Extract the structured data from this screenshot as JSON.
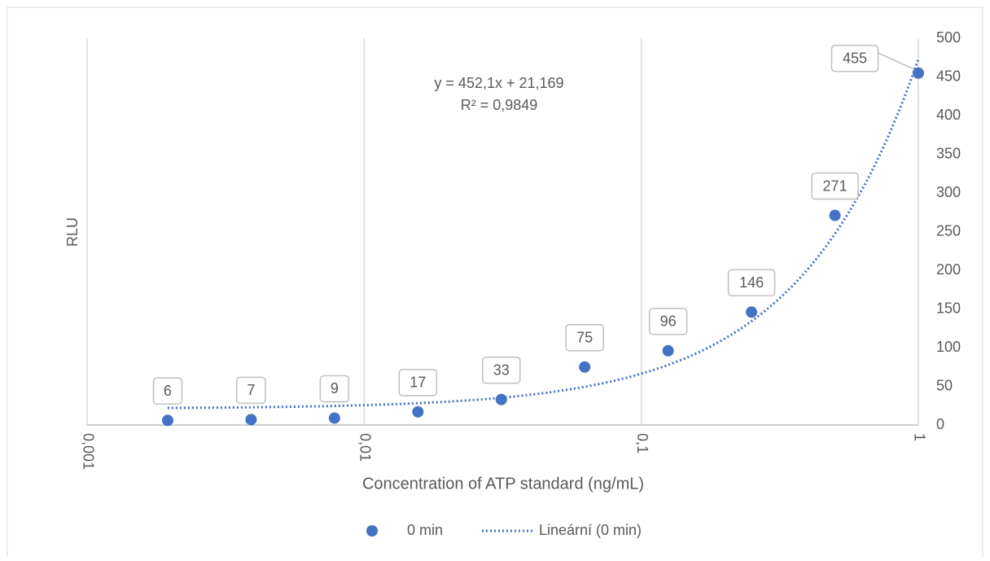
{
  "chart_data": {
    "type": "scatter",
    "x_label": "Concentration of ATP standard (ng/mL)",
    "y_label": "RLU",
    "series": [
      {
        "name": "0 min",
        "color": "#4472c4",
        "x": [
          0.001953125,
          0.00390625,
          0.0078125,
          0.015625,
          0.03125,
          0.0625,
          0.125,
          0.25,
          0.5,
          1
        ],
        "values": [
          6,
          7,
          9,
          17,
          33,
          75,
          96,
          146,
          271,
          455
        ]
      }
    ],
    "trendline": {
      "name": "Lineární (0 min)",
      "color": "#4472c4",
      "equation": "y = 452,1x + 21,169",
      "r2": "R² = 0,9849",
      "slope": 452.1,
      "intercept": 21.169
    },
    "x_log": true,
    "xlim": [
      0.001,
      1
    ],
    "xticks": [
      {
        "value": 0.001,
        "label": "0,001"
      },
      {
        "value": 0.01,
        "label": "0,01"
      },
      {
        "value": 0.1,
        "label": "0,1"
      },
      1
    ],
    "ylim": [
      0,
      500
    ],
    "yticks": [
      0,
      50,
      100,
      150,
      200,
      250,
      300,
      350,
      400,
      450,
      500
    ],
    "y_axis_side": "right",
    "grid": true,
    "legend": "bottom"
  }
}
